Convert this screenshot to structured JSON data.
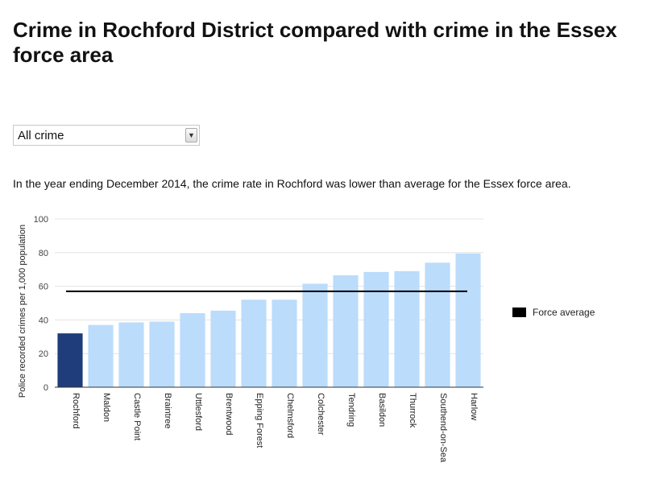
{
  "title": "Crime in Rochford District compared with crime in the Essex force area",
  "filter": {
    "selected": "All crime",
    "arrow_icon": "chevron-down-icon"
  },
  "summary": "In the year ending December 2014, the crime rate in Rochford was lower than average for the Essex force area.",
  "legend": {
    "label": "Force average",
    "color": "#000000"
  },
  "colors": {
    "highlight": "#1f3d7a",
    "bar": "#bbdcfb",
    "grid": "#e3e3e3",
    "average_line": "#000000"
  },
  "chart_data": {
    "type": "bar",
    "ylabel": "Police recorded crimes per 1,000 population",
    "xlabel": "",
    "ylim": [
      0,
      100
    ],
    "yticks": [
      0,
      20,
      40,
      60,
      80,
      100
    ],
    "grid": true,
    "legend_position": "right",
    "highlight_category": "Rochford",
    "categories": [
      "Rochford",
      "Maldon",
      "Castle Point",
      "Braintree",
      "Uttlesford",
      "Brentwood",
      "Epping Forest",
      "Chelmsford",
      "Colchester",
      "Tendring",
      "Basildon",
      "Thurrock",
      "Southend-on-Sea",
      "Harlow"
    ],
    "values": [
      32,
      37,
      38.5,
      39,
      44,
      45.5,
      52,
      52,
      61.5,
      66.5,
      68.5,
      69,
      74,
      79.5
    ],
    "force_average": 57
  }
}
